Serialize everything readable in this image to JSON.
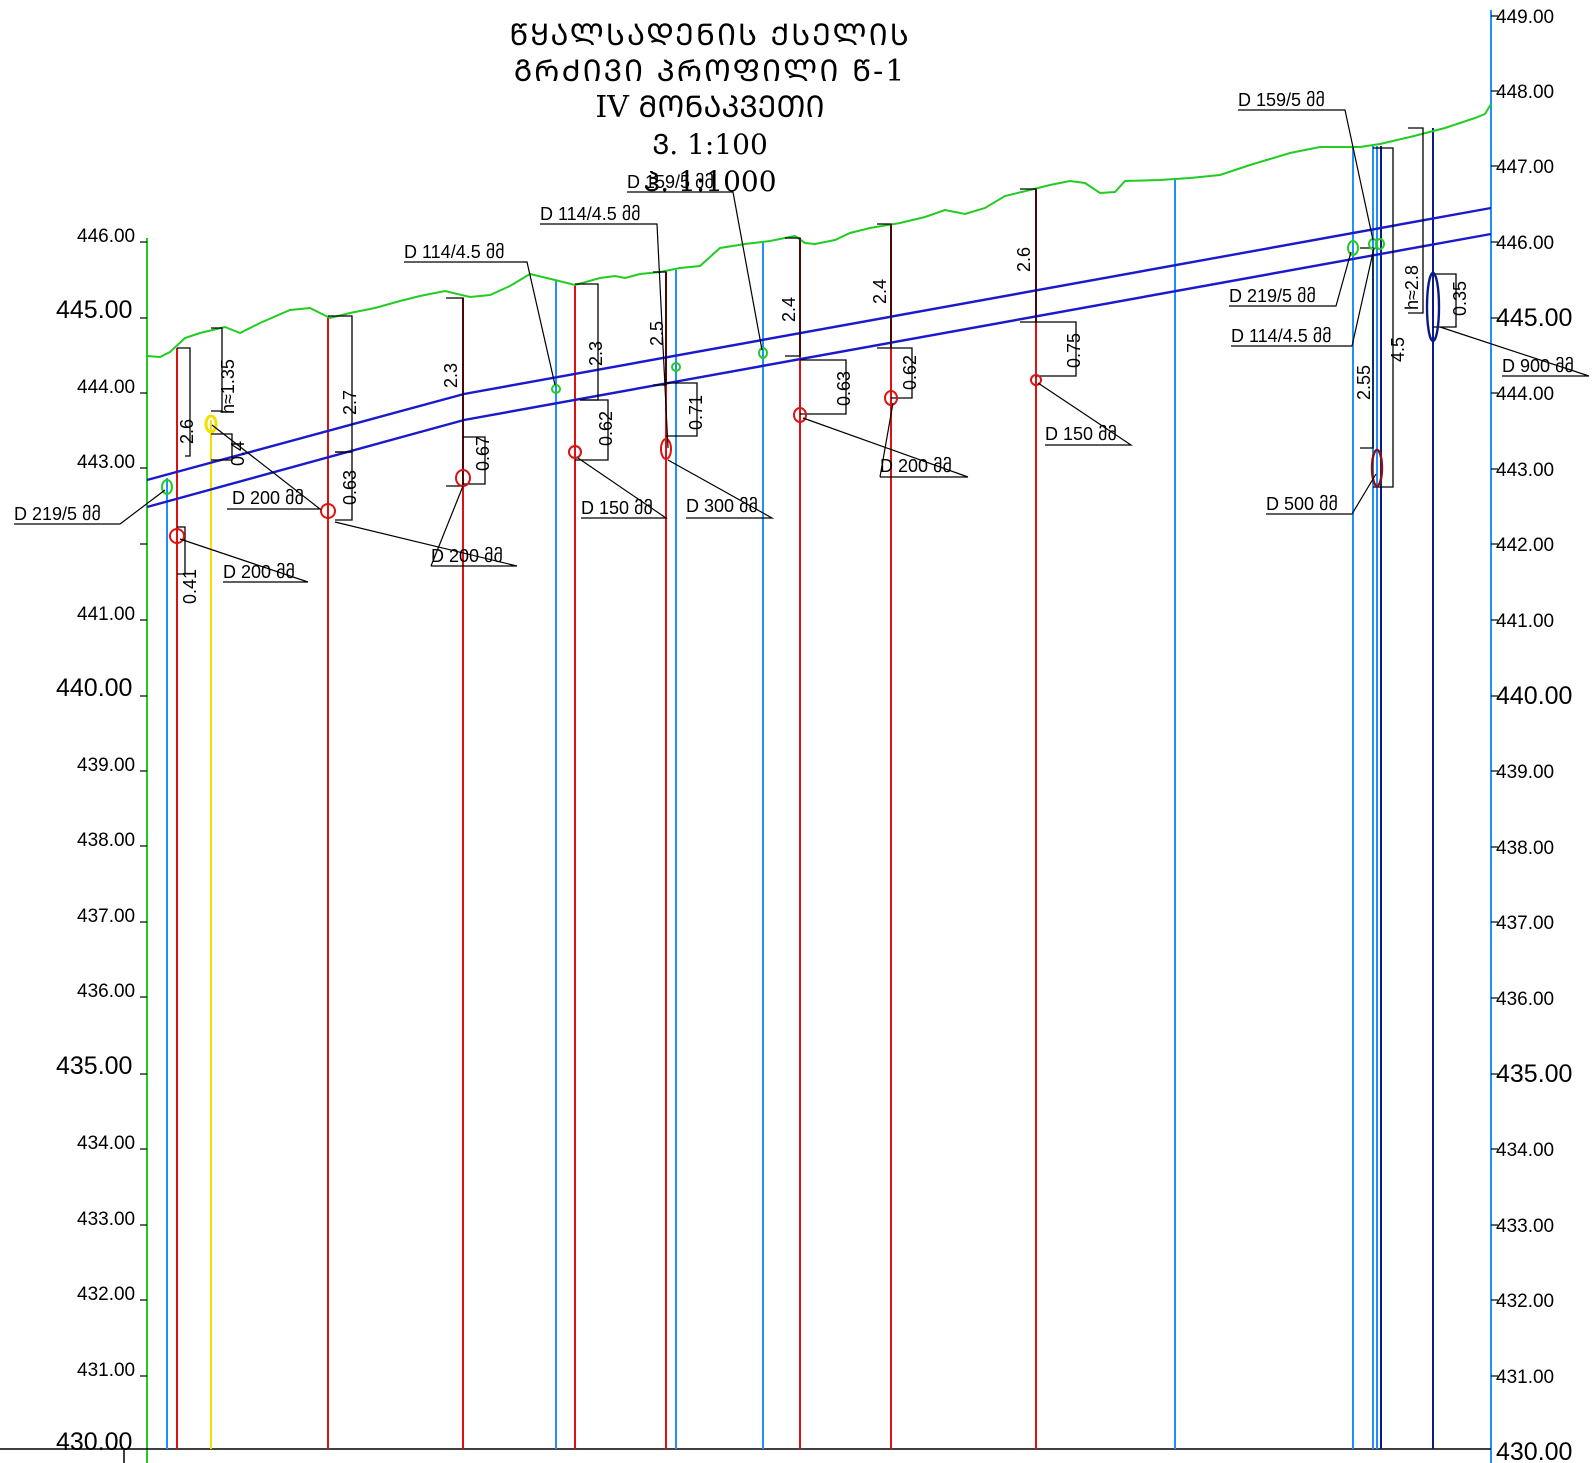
{
  "title": {
    "line1": "ᲬᲧᲐᲚᲡᲐᲓᲔᲜᲘᲡ ᲥᲡᲔᲚᲘᲡ ᲒᲠᲫᲘᲕᲘ ᲞᲠᲝᲤᲘᲚᲘ Წ-1",
    "line2": "IV  ᲛᲝᲜᲐᲙᲕᲔᲗᲘ",
    "line3": "Ვ. 1:100",
    "line4": "Ჰ. 1:1000"
  },
  "left_axis_labels": [
    "446.00",
    "445.00",
    "444.00",
    "443.00",
    "441.00",
    "440.00",
    "439.00",
    "438.00",
    "437.00",
    "436.00",
    "435.00",
    "434.00",
    "433.00",
    "432.00",
    "431.00",
    "430.00"
  ],
  "right_axis_labels": [
    "449.00",
    "448.00",
    "447.00",
    "446.00",
    "445.00",
    "444.00",
    "443.00",
    "442.00",
    "441.00",
    "440.00",
    "439.00",
    "438.00",
    "437.00",
    "436.00",
    "435.00",
    "434.00",
    "433.00",
    "432.00",
    "431.00",
    "430.00"
  ],
  "dimensions": [
    "2.6",
    "h≈1.35",
    "0.4",
    "0.41",
    "2.7",
    "0.63",
    "2.3",
    "0.67",
    "2.3",
    "0.62",
    "2.5",
    "0.71",
    "2.4",
    "0.63",
    "2.4",
    "0.62",
    "2.6",
    "0.75",
    "2.55",
    "4.5",
    "h≈2.8",
    "0.35"
  ],
  "callouts": [
    "D 219/5 მმ",
    "D 200 მმ",
    "D 200 მმ",
    "D 200 მმ",
    "D 114/4.5 მმ",
    "D 150 მმ",
    "D 114/4.5 მმ",
    "D 300 მმ",
    "D 159/5 მმ",
    "D 200 მმ",
    "D 150 მმ",
    "D 159/5 მმ",
    "D 219/5 მმ",
    "D 114/4.5 მმ",
    "D 500 მმ",
    "D 900 მმ"
  ],
  "colors": {
    "ground": "#22cc22",
    "pipe_profile": "#1a1acc",
    "utility_red": "#dd1111",
    "utility_blue": "#1e90ff",
    "utility_yellow": "#f0e000",
    "axis_green": "#22cc22",
    "axis_blue": "#1e90ff",
    "navy": "#0a1a88"
  }
}
